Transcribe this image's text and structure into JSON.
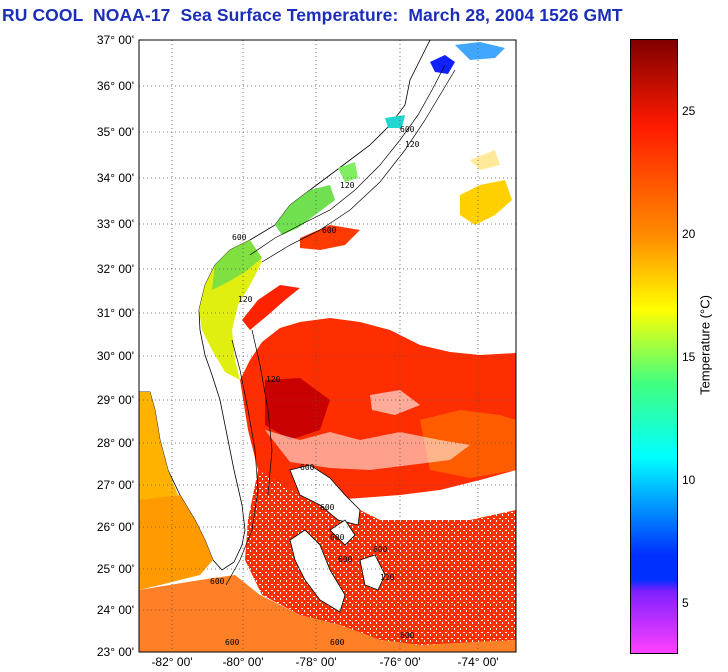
{
  "title": "RU COOL  NOAA-17  Sea Surface Temperature:  March 28, 2004 1526 GMT",
  "map": {
    "lat_ticks": [
      "37° 00'",
      "36° 00'",
      "35° 00'",
      "34° 00'",
      "33° 00'",
      "32° 00'",
      "31° 00'",
      "30° 00'",
      "29° 00'",
      "28° 00'",
      "27° 00'",
      "26° 00'",
      "25° 00'",
      "24° 00'",
      "23° 00'"
    ],
    "lon_ticks": [
      "-82° 00'",
      "-80° 00'",
      "-78° 00'",
      "-76° 00'",
      "-74° 00'"
    ],
    "contour_labels": [
      "600",
      "120",
      "120",
      "600",
      "120",
      "600",
      "120",
      "600",
      "600",
      "600",
      "600",
      "600",
      "600",
      "600",
      "600",
      "120",
      "600"
    ]
  },
  "colorbar": {
    "title": "Temperature (°C)",
    "ticks": [
      "25",
      "20",
      "15",
      "10",
      "5"
    ],
    "tick_values": [
      25,
      20,
      15,
      10,
      5
    ],
    "range": [
      3,
      28
    ],
    "colors": {
      "max": "#800000",
      "red": "#ff1a00",
      "orange": "#ff8c00",
      "yellow": "#ffff00",
      "green": "#40ff80",
      "cyan": "#00ffff",
      "blue": "#0030ff",
      "purple": "#8020ff",
      "magenta": "#ff40ff"
    }
  }
}
